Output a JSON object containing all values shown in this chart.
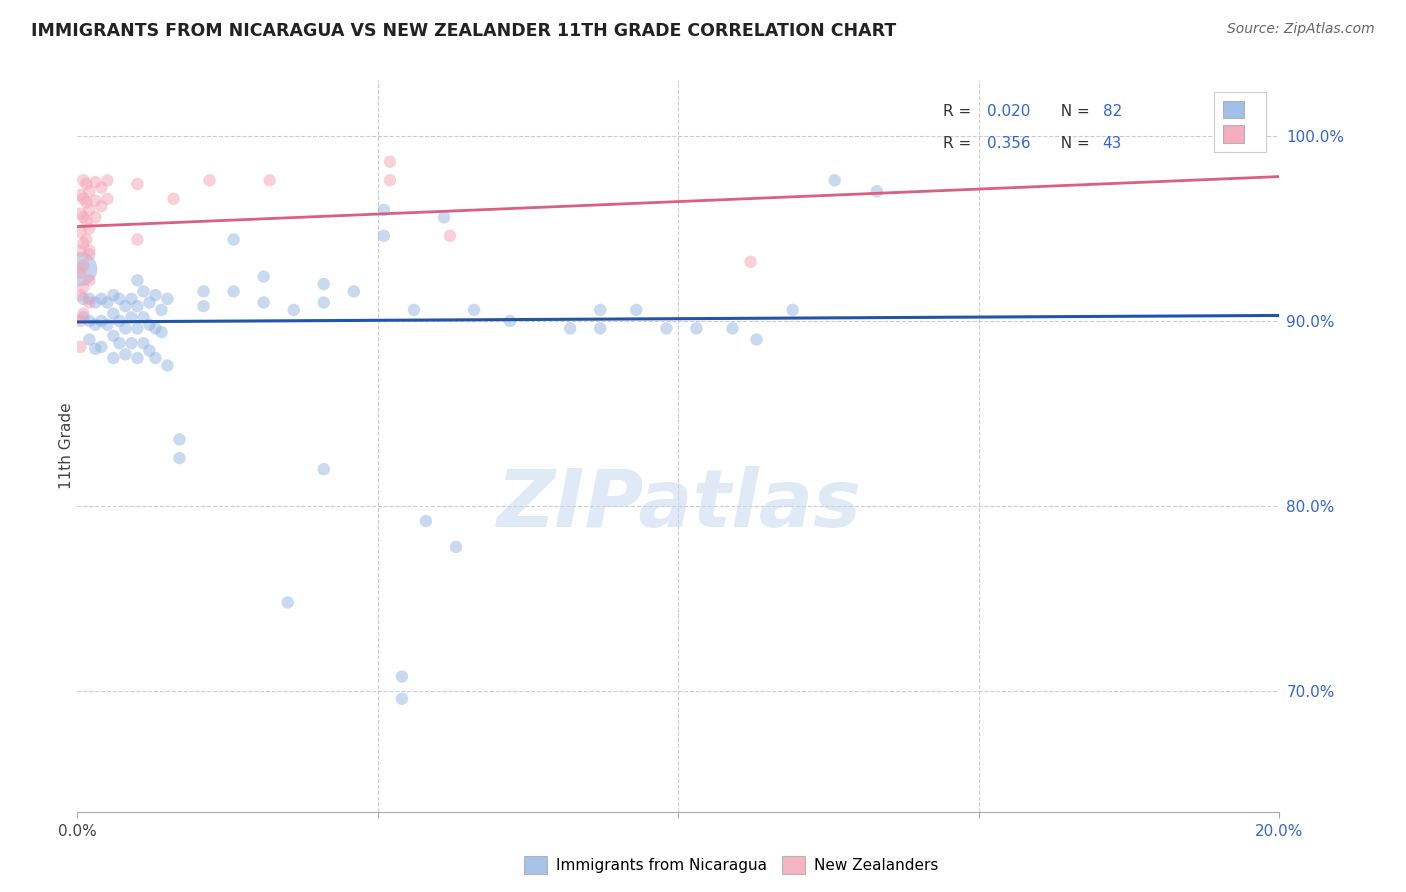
{
  "title": "IMMIGRANTS FROM NICARAGUA VS NEW ZEALANDER 11TH GRADE CORRELATION CHART",
  "source": "Source: ZipAtlas.com",
  "ylabel": "11th Grade",
  "x_min": 0.0,
  "x_max": 0.2,
  "y_min": 0.635,
  "y_max": 1.03,
  "y_ticks": [
    0.7,
    0.8,
    0.9,
    1.0
  ],
  "y_tick_labels": [
    "70.0%",
    "80.0%",
    "90.0%",
    "100.0%"
  ],
  "x_ticks": [
    0.0,
    0.05,
    0.1,
    0.15,
    0.2
  ],
  "x_tick_labels_show": [
    "0.0%",
    "20.0%"
  ],
  "blue_color": "#92b4e3",
  "pink_color": "#f4a0b5",
  "trendline_blue_color": "#2255aa",
  "trendline_pink_color": "#d96080",
  "trendline_blue": [
    0.0,
    0.8995,
    0.2,
    0.903
  ],
  "trendline_pink": [
    0.0,
    0.951,
    0.2,
    0.978
  ],
  "scatter_size": 80,
  "scatter_alpha": 0.5,
  "large_blue_pt": [
    0.0005,
    0.928
  ],
  "large_blue_size": 600,
  "blue_pts": [
    [
      0.001,
      0.912
    ],
    [
      0.001,
      0.902
    ],
    [
      0.002,
      0.912
    ],
    [
      0.002,
      0.9
    ],
    [
      0.002,
      0.89
    ],
    [
      0.003,
      0.91
    ],
    [
      0.003,
      0.898
    ],
    [
      0.003,
      0.885
    ],
    [
      0.004,
      0.912
    ],
    [
      0.004,
      0.9
    ],
    [
      0.004,
      0.886
    ],
    [
      0.005,
      0.91
    ],
    [
      0.005,
      0.898
    ],
    [
      0.006,
      0.914
    ],
    [
      0.006,
      0.904
    ],
    [
      0.006,
      0.892
    ],
    [
      0.006,
      0.88
    ],
    [
      0.007,
      0.912
    ],
    [
      0.007,
      0.9
    ],
    [
      0.007,
      0.888
    ],
    [
      0.008,
      0.908
    ],
    [
      0.008,
      0.896
    ],
    [
      0.008,
      0.882
    ],
    [
      0.009,
      0.912
    ],
    [
      0.009,
      0.902
    ],
    [
      0.009,
      0.888
    ],
    [
      0.01,
      0.922
    ],
    [
      0.01,
      0.908
    ],
    [
      0.01,
      0.896
    ],
    [
      0.01,
      0.88
    ],
    [
      0.011,
      0.916
    ],
    [
      0.011,
      0.902
    ],
    [
      0.011,
      0.888
    ],
    [
      0.012,
      0.91
    ],
    [
      0.012,
      0.898
    ],
    [
      0.012,
      0.884
    ],
    [
      0.013,
      0.914
    ],
    [
      0.013,
      0.896
    ],
    [
      0.013,
      0.88
    ],
    [
      0.014,
      0.906
    ],
    [
      0.014,
      0.894
    ],
    [
      0.015,
      0.912
    ],
    [
      0.015,
      0.876
    ],
    [
      0.017,
      0.836
    ],
    [
      0.017,
      0.826
    ],
    [
      0.021,
      0.916
    ],
    [
      0.021,
      0.908
    ],
    [
      0.026,
      0.944
    ],
    [
      0.026,
      0.916
    ],
    [
      0.031,
      0.924
    ],
    [
      0.031,
      0.91
    ],
    [
      0.036,
      0.906
    ],
    [
      0.041,
      0.92
    ],
    [
      0.041,
      0.91
    ],
    [
      0.046,
      0.916
    ],
    [
      0.051,
      0.96
    ],
    [
      0.051,
      0.946
    ],
    [
      0.056,
      0.906
    ],
    [
      0.061,
      0.956
    ],
    [
      0.066,
      0.906
    ],
    [
      0.072,
      0.9
    ],
    [
      0.082,
      0.896
    ],
    [
      0.087,
      0.906
    ],
    [
      0.087,
      0.896
    ],
    [
      0.093,
      0.906
    ],
    [
      0.098,
      0.896
    ],
    [
      0.103,
      0.896
    ],
    [
      0.109,
      0.896
    ],
    [
      0.113,
      0.89
    ],
    [
      0.119,
      0.906
    ],
    [
      0.126,
      0.976
    ],
    [
      0.133,
      0.97
    ],
    [
      0.041,
      0.82
    ],
    [
      0.058,
      0.792
    ],
    [
      0.063,
      0.778
    ],
    [
      0.035,
      0.748
    ],
    [
      0.054,
      0.708
    ],
    [
      0.054,
      0.696
    ]
  ],
  "pink_pts": [
    [
      0.001,
      0.976
    ],
    [
      0.001,
      0.966
    ],
    [
      0.001,
      0.956
    ],
    [
      0.0015,
      0.974
    ],
    [
      0.0015,
      0.964
    ],
    [
      0.0015,
      0.954
    ],
    [
      0.0015,
      0.944
    ],
    [
      0.002,
      0.97
    ],
    [
      0.002,
      0.96
    ],
    [
      0.002,
      0.95
    ],
    [
      0.002,
      0.938
    ],
    [
      0.003,
      0.975
    ],
    [
      0.003,
      0.965
    ],
    [
      0.003,
      0.956
    ],
    [
      0.004,
      0.972
    ],
    [
      0.004,
      0.962
    ],
    [
      0.005,
      0.976
    ],
    [
      0.005,
      0.966
    ],
    [
      0.0005,
      0.968
    ],
    [
      0.0005,
      0.958
    ],
    [
      0.0005,
      0.948
    ],
    [
      0.0005,
      0.938
    ],
    [
      0.0005,
      0.926
    ],
    [
      0.0005,
      0.914
    ],
    [
      0.0005,
      0.9
    ],
    [
      0.0005,
      0.886
    ],
    [
      0.001,
      0.942
    ],
    [
      0.001,
      0.93
    ],
    [
      0.001,
      0.918
    ],
    [
      0.001,
      0.904
    ],
    [
      0.002,
      0.936
    ],
    [
      0.002,
      0.922
    ],
    [
      0.002,
      0.91
    ],
    [
      0.01,
      0.974
    ],
    [
      0.01,
      0.944
    ],
    [
      0.016,
      0.966
    ],
    [
      0.022,
      0.976
    ],
    [
      0.032,
      0.976
    ],
    [
      0.052,
      0.986
    ],
    [
      0.052,
      0.976
    ],
    [
      0.062,
      0.946
    ],
    [
      0.112,
      0.932
    ]
  ],
  "legend_r1": "R = 0.020",
  "legend_n1": "N = 82",
  "legend_r2": "R = 0.356",
  "legend_n2": "N = 43",
  "text_color_blue": "#3366cc",
  "text_color_dark": "#222222",
  "grid_color": "#cccccc",
  "watermark_text": "ZIPatlas",
  "watermark_color": "#c8d8ef",
  "bottom_legend": [
    "Immigrants from Nicaragua",
    "New Zealanders"
  ]
}
